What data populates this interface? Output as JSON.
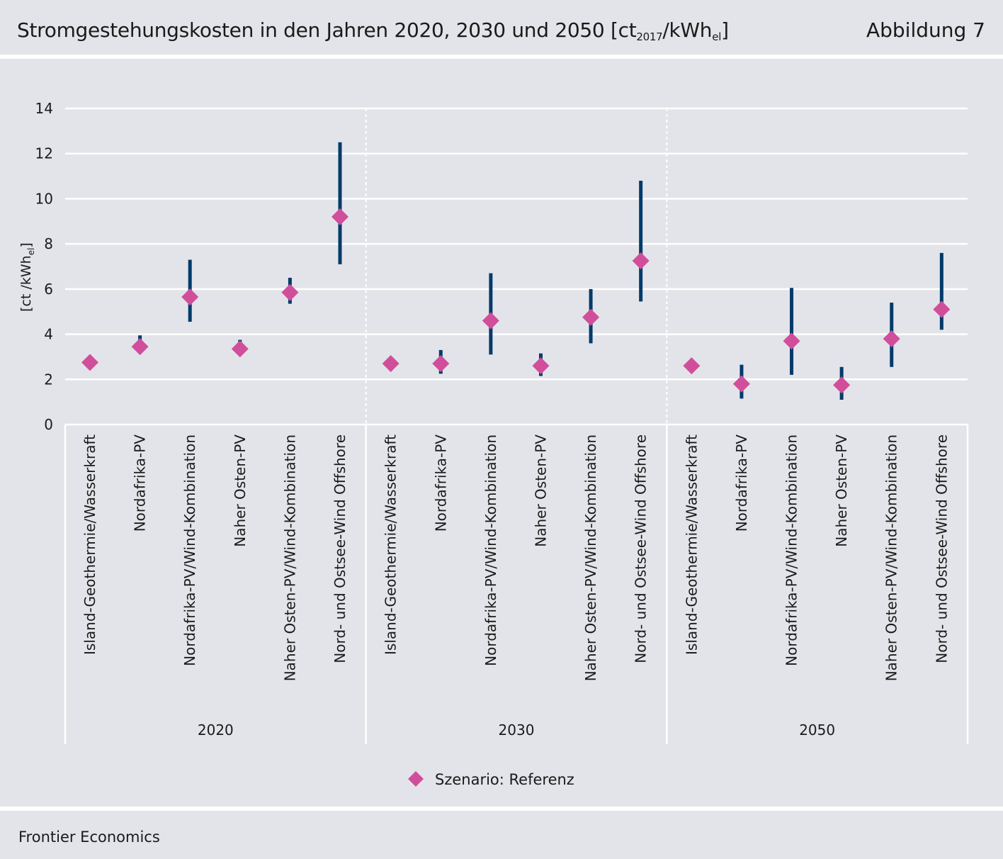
{
  "header": {
    "title_main": "Stromgestehungskosten in den Jahren 2020, 2030 und 2050 [ct",
    "title_sub1": "2017",
    "title_mid": "/kWh",
    "title_sub2": "el",
    "title_end": "]",
    "figure_label": "Abbildung 7"
  },
  "footer": {
    "source": "Frontier Economics"
  },
  "chart_data": {
    "type": "scatter",
    "ylabel": "[ct /kWh",
    "ylabel_sub": "el",
    "ylabel_end": "]",
    "ylim": [
      0,
      14
    ],
    "yticks": [
      0,
      2,
      4,
      6,
      8,
      10,
      12,
      14
    ],
    "grid": true,
    "legend_position": "bottom-center",
    "colors": {
      "marker": "#d14e9b",
      "range": "#003a6b",
      "grid": "#ffffff"
    },
    "categories": [
      "Island-Geothermie/Wasserkraft",
      "Nordafrika-PV",
      "Nordafrika-PV/Wind-Kombination",
      "Naher Osten-PV",
      "Naher Osten-PV/Wind-Kombination",
      "Nord- und Ostsee-Wind Offshore"
    ],
    "groups": [
      {
        "year": "2020",
        "points": [
          {
            "value": 2.75,
            "low": null,
            "high": null
          },
          {
            "value": 3.45,
            "low": 3.35,
            "high": 3.95
          },
          {
            "value": 5.65,
            "low": 4.55,
            "high": 7.3
          },
          {
            "value": 3.35,
            "low": 3.25,
            "high": 3.75
          },
          {
            "value": 5.85,
            "low": 5.35,
            "high": 6.5
          },
          {
            "value": 9.2,
            "low": 7.1,
            "high": 12.5
          }
        ]
      },
      {
        "year": "2030",
        "points": [
          {
            "value": 2.7,
            "low": null,
            "high": null
          },
          {
            "value": 2.7,
            "low": 2.25,
            "high": 3.3
          },
          {
            "value": 4.6,
            "low": 3.1,
            "high": 6.7
          },
          {
            "value": 2.6,
            "low": 2.15,
            "high": 3.15
          },
          {
            "value": 4.75,
            "low": 3.6,
            "high": 6.0
          },
          {
            "value": 7.25,
            "low": 5.45,
            "high": 10.8
          }
        ]
      },
      {
        "year": "2050",
        "points": [
          {
            "value": 2.6,
            "low": null,
            "high": null
          },
          {
            "value": 1.8,
            "low": 1.15,
            "high": 2.65
          },
          {
            "value": 3.7,
            "low": 2.2,
            "high": 6.05
          },
          {
            "value": 1.75,
            "low": 1.1,
            "high": 2.55
          },
          {
            "value": 3.8,
            "low": 2.55,
            "high": 5.4
          },
          {
            "value": 5.1,
            "low": 4.2,
            "high": 7.6
          }
        ]
      }
    ],
    "legend": [
      {
        "label": "Szenario: Referenz"
      }
    ]
  }
}
